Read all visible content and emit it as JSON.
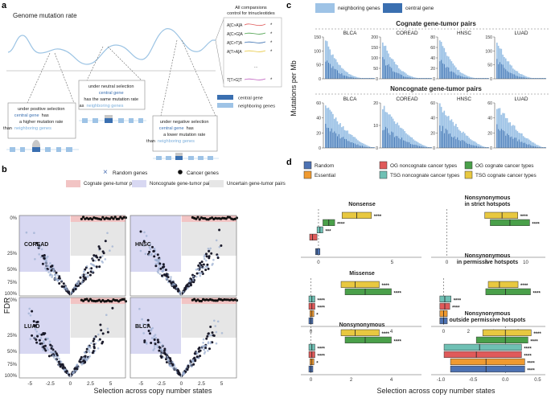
{
  "panel_labels": {
    "a": "a",
    "b": "b",
    "c": "c",
    "d": "d"
  },
  "panel_a": {
    "title": "Genome mutation rate",
    "positive": {
      "l1": "under positive selection",
      "l2": "central gene",
      "l3": "has",
      "l4": "a higher mutation rate",
      "l5": "than",
      "l6": "neighboring genes"
    },
    "neutral": {
      "l1": "under neutral selection",
      "l2": "central gene",
      "l3": "has the same mutation rate",
      "l4": "as",
      "l5": "neighboring genes"
    },
    "negative": {
      "l1": "under negative selection",
      "l2": "central gene",
      "l3": "has",
      "l4": "a lower mutation rate",
      "l5": "than",
      "l6": "neighboring genes"
    },
    "comparisons_title_1": "All comparsions",
    "comparisons_title_2": "control for trinucleotides",
    "trinucleotides": [
      "A[C>A]A",
      "A[C>G]A",
      "A[C>T]A",
      "A[T>A]A",
      "...",
      "T[T>G]T"
    ],
    "legend": {
      "central": "central gene",
      "neighboring": "neighboring genes"
    },
    "colors": {
      "central": "#3a6fb0",
      "neighboring": "#9ec3e6",
      "curve": "#9cc4e4"
    }
  },
  "panel_b": {
    "legend": {
      "random": "Random genes",
      "cancer": "Cancer genes",
      "cognate": "Cognate gene-tumor pairs",
      "noncognate": "Noncognate gene-tumor pairs",
      "uncertain": "Uncertain gene-tumor pairs"
    },
    "subplots": [
      "COREAD",
      "HNSC",
      "LUAD",
      "BLCA"
    ],
    "y_ticks": [
      "0%",
      "25%",
      "50%",
      "75%",
      "100%"
    ],
    "x_ticks": [
      "-5",
      "-2.5",
      "0",
      "2.5",
      "5"
    ],
    "y_label": "FDR",
    "x_label": "Selection across copy number states",
    "colors": {
      "cognate": "#f2c4c4",
      "noncognate": "#d8d8f2",
      "uncertain": "#e6e6e6"
    }
  },
  "panel_c": {
    "legend": {
      "neighboring": "neighboring genes",
      "central": "central gene"
    },
    "cognate_title": "Cognate gene-tumor pairs",
    "noncognate_title": "Noncognate gene-tumor pairs",
    "y_label": "Mutations per Mb",
    "cognate_plots": [
      {
        "name": "BLCA",
        "ticks": [
          "0",
          "50",
          "100",
          "150"
        ]
      },
      {
        "name": "COREAD",
        "ticks": [
          "0",
          "50",
          "100",
          "150",
          "200"
        ]
      },
      {
        "name": "HNSC",
        "ticks": [
          "0",
          "20",
          "40",
          "60",
          "80"
        ]
      },
      {
        "name": "LUAD",
        "ticks": [
          "0",
          "50",
          "100",
          "150"
        ]
      }
    ],
    "noncognate_plots": [
      {
        "name": "BLCA",
        "ticks": [
          "0",
          "20",
          "40",
          "60"
        ]
      },
      {
        "name": "COREAD",
        "ticks": [
          "0",
          "10",
          "20"
        ]
      },
      {
        "name": "HNSC",
        "ticks": [
          "0",
          "20",
          "40",
          "60"
        ]
      },
      {
        "name": "LUAD",
        "ticks": [
          "0",
          "20",
          "40",
          "60"
        ]
      }
    ]
  },
  "panel_d": {
    "legend": [
      "Random",
      "OG noncognate cancer types",
      "OG cognate cancer types",
      "Essential",
      "TSG noncognate cancer types",
      "TSG cognate cancer types"
    ],
    "colors": {
      "Random": "#4d72b3",
      "OG noncognate cancer types": "#e05a5a",
      "OG cognate cancer types": "#4aa04a",
      "Essential": "#f09a30",
      "TSG noncognate cancer types": "#6fc0b4",
      "TSG cognate cancer types": "#e8c840"
    },
    "x_label": "Selection across copy number states",
    "chart_data": [
      {
        "type": "boxplot",
        "title": "Nonsense",
        "x_ticks": [
          "0",
          "5"
        ],
        "xlim": [
          -1.2,
          7.0
        ],
        "groups": [
          {
            "name": "TSG cognate cancer types",
            "median": 2.6,
            "q1": 1.6,
            "q3": 3.6,
            "sig": "****"
          },
          {
            "name": "OG cognate cancer types",
            "median": 0.7,
            "q1": 0.3,
            "q3": 1.1,
            "sig": "****"
          },
          {
            "name": "TSG noncognate cancer types",
            "median": 0.1,
            "q1": -0.1,
            "q3": 0.3,
            "sig": "***"
          },
          {
            "name": "OG noncognate cancer types",
            "median": -0.4,
            "q1": -0.6,
            "q3": -0.1,
            "sig": ""
          },
          {
            "name": "Random",
            "median": -0.1,
            "q1": -0.2,
            "q3": 0.1,
            "sig": ""
          }
        ]
      },
      {
        "type": "boxplot",
        "title": "Nonsynonymous in strict hotspots",
        "x_ticks": [
          "0",
          "5",
          "10"
        ],
        "xlim": [
          -2.0,
          12.5
        ],
        "groups": [
          {
            "name": "TSG cognate cancer types",
            "median": 7.0,
            "q1": 4.8,
            "q3": 9.0,
            "sig": "****"
          },
          {
            "name": "OG cognate cancer types",
            "median": 8.0,
            "q1": 5.5,
            "q3": 10.5,
            "sig": "****"
          }
        ]
      },
      {
        "type": "boxplot",
        "title": "Missense",
        "x_ticks": [
          "0",
          "2",
          "4"
        ],
        "xlim": [
          -0.5,
          5.5
        ],
        "groups": [
          {
            "name": "TSG cognate cancer types",
            "median": 2.2,
            "q1": 1.5,
            "q3": 3.4,
            "sig": "****"
          },
          {
            "name": "OG cognate cancer types",
            "median": 2.7,
            "q1": 1.7,
            "q3": 4.0,
            "sig": "****"
          },
          {
            "name": "TSG noncognate cancer types",
            "median": 0.05,
            "q1": -0.1,
            "q3": 0.2,
            "sig": "****"
          },
          {
            "name": "OG noncognate cancer types",
            "median": 0.05,
            "q1": -0.1,
            "q3": 0.2,
            "sig": "****"
          },
          {
            "name": "Essential",
            "median": 0.05,
            "q1": -0.05,
            "q3": 0.15,
            "sig": "*"
          },
          {
            "name": "Random",
            "median": 0.0,
            "q1": -0.1,
            "q3": 0.1,
            "sig": ""
          }
        ]
      },
      {
        "type": "boxplot",
        "title": "Nonsynonymous in permissive hotspots",
        "x_ticks": [
          "0",
          "2",
          "4",
          "6"
        ],
        "xlim": [
          -1.0,
          8.2
        ],
        "groups": [
          {
            "name": "TSG cognate cancer types",
            "median": 4.5,
            "q1": 3.6,
            "q3": 6.0,
            "sig": "****"
          },
          {
            "name": "OG cognate cancer types",
            "median": 5.0,
            "q1": 3.4,
            "q3": 7.0,
            "sig": "****"
          },
          {
            "name": "TSG noncognate cancer types",
            "median": 0.1,
            "q1": -0.3,
            "q3": 0.6,
            "sig": "****"
          },
          {
            "name": "OG noncognate cancer types",
            "median": 0.1,
            "q1": -0.3,
            "q3": 0.5,
            "sig": "****"
          },
          {
            "name": "Essential",
            "median": 0.0,
            "q1": -0.3,
            "q3": 0.3,
            "sig": ""
          },
          {
            "name": "Random",
            "median": 0.0,
            "q1": -0.3,
            "q3": 0.3,
            "sig": ""
          }
        ]
      },
      {
        "type": "boxplot",
        "title": "Nonsynonymous",
        "x_ticks": [
          "0",
          "2",
          "4"
        ],
        "xlim": [
          -0.5,
          5.5
        ],
        "groups": [
          {
            "name": "TSG cognate cancer types",
            "median": 2.2,
            "q1": 1.5,
            "q3": 3.4,
            "sig": "****"
          },
          {
            "name": "OG cognate cancer types",
            "median": 2.7,
            "q1": 1.7,
            "q3": 4.0,
            "sig": "****"
          },
          {
            "name": "TSG noncognate cancer types",
            "median": 0.05,
            "q1": -0.1,
            "q3": 0.2,
            "sig": "****"
          },
          {
            "name": "OG noncognate cancer types",
            "median": 0.05,
            "q1": -0.1,
            "q3": 0.2,
            "sig": "****"
          },
          {
            "name": "Essential",
            "median": 0.05,
            "q1": -0.05,
            "q3": 0.15,
            "sig": "*"
          },
          {
            "name": "Random",
            "median": 0.0,
            "q1": -0.1,
            "q3": 0.1,
            "sig": ""
          }
        ]
      },
      {
        "type": "boxplot",
        "title": "Nonsynonymous outside permissive hotspots",
        "x_ticks": [
          "-1.0",
          "-0.5",
          "0.0",
          "0.5"
        ],
        "xlim": [
          -1.15,
          0.62
        ],
        "groups": [
          {
            "name": "TSG cognate cancer types",
            "median": 0.0,
            "q1": -0.35,
            "q3": 0.4,
            "sig": "****"
          },
          {
            "name": "OG cognate cancer types",
            "median": 0.0,
            "q1": -0.45,
            "q3": 0.35,
            "sig": "****"
          },
          {
            "name": "TSG noncognate cancer types",
            "median": -0.4,
            "q1": -0.95,
            "q3": 0.25,
            "sig": "****"
          },
          {
            "name": "OG noncognate cancer types",
            "median": -0.45,
            "q1": -0.95,
            "q3": 0.25,
            "sig": "****"
          },
          {
            "name": "Essential",
            "median": -0.3,
            "q1": -0.85,
            "q3": 0.3,
            "sig": "****"
          },
          {
            "name": "Random",
            "median": -0.3,
            "q1": -0.85,
            "q3": 0.3,
            "sig": "****"
          }
        ]
      }
    ]
  }
}
